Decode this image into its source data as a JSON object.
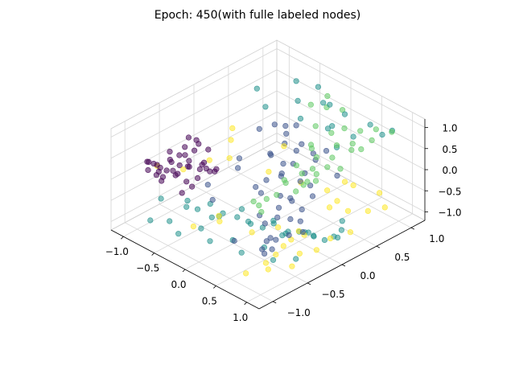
{
  "chart_data": {
    "type": "scatter",
    "projection": "3d",
    "title": "Epoch: 450(with fulle labeled nodes)",
    "xlabel": "",
    "ylabel": "",
    "zlabel": "",
    "xlim": [
      -1.2,
      1.2
    ],
    "ylim": [
      -1.2,
      1.2
    ],
    "zlim": [
      -1.2,
      1.2
    ],
    "x_ticks": [
      "−1.0",
      "−0.5",
      "0.0",
      "0.5",
      "1.0"
    ],
    "y_ticks": [
      "−1.0",
      "−0.5",
      "0.0",
      "0.5",
      "1.0"
    ],
    "z_ticks": [
      "−1.0",
      "−0.5",
      "0.0",
      "0.5",
      "1.0"
    ],
    "grid": true,
    "colormap": "viridis",
    "marker_alpha": 0.55,
    "cluster_colors": [
      "#440154",
      "#3b528b",
      "#21918c",
      "#5ec962",
      "#fde725"
    ],
    "clusters": [
      {
        "color": "#440154",
        "x": [
          -0.95,
          -0.9,
          -0.88,
          -0.85,
          -0.8,
          -0.78,
          -0.75,
          -0.7,
          -0.92,
          -0.86,
          -0.82,
          -0.76,
          -0.72,
          -0.68,
          -0.9,
          -0.84,
          -0.8,
          -0.74,
          -0.66,
          -0.62,
          -0.95,
          -0.88,
          -0.7,
          -0.6,
          -0.55,
          -0.93,
          -0.83,
          -0.77,
          -0.65,
          -0.58,
          -0.9,
          -0.8,
          -0.72,
          -0.64,
          -0.5,
          -0.87,
          -0.79,
          -0.69,
          -0.61,
          -0.56
        ],
        "y": [
          -0.9,
          -0.85,
          -0.95,
          -0.8,
          -0.9,
          -0.7,
          -0.85,
          -0.75,
          -0.6,
          -0.65,
          -0.55,
          -0.6,
          -0.5,
          -0.7,
          -0.4,
          -0.45,
          -0.35,
          -0.5,
          -0.55,
          -0.4,
          -0.3,
          -0.25,
          -0.3,
          -0.45,
          -0.35,
          -0.75,
          -0.8,
          -0.65,
          -0.6,
          -0.5,
          -0.2,
          -0.15,
          -0.25,
          -0.2,
          -0.3,
          -0.95,
          -0.9,
          -0.85,
          -0.7,
          -0.6
        ],
        "z": [
          0.35,
          0.3,
          0.25,
          0.2,
          0.15,
          0.3,
          0.1,
          0.2,
          0.35,
          0.25,
          0.3,
          0.15,
          0.2,
          0.1,
          0.3,
          0.2,
          0.25,
          0.05,
          0.15,
          0.1,
          0.4,
          0.35,
          0.0,
          0.05,
          -0.05,
          0.0,
          -0.1,
          -0.05,
          -0.15,
          -0.1,
          0.2,
          0.1,
          -0.2,
          -0.25,
          0.0,
          0.45,
          0.4,
          0.3,
          -0.3,
          -0.2
        ]
      },
      {
        "color": "#3b528b",
        "x": [
          -0.9,
          -0.6,
          -0.4,
          -0.2,
          0.0,
          0.2,
          0.4,
          0.6,
          0.8,
          -0.7,
          -0.3,
          0.1,
          0.5,
          0.7,
          -0.5,
          -0.1,
          0.3,
          0.9,
          -0.8,
          -0.2,
          0.2,
          0.6,
          -0.6,
          0.0,
          0.4,
          0.8,
          -0.4,
          0.1,
          0.5,
          0.95,
          -0.75,
          -0.35,
          0.15,
          0.55,
          0.85,
          -0.55,
          -0.05,
          0.35,
          0.75,
          -0.15,
          0.25,
          0.65,
          -0.45,
          0.05,
          0.45,
          0.9,
          -0.25,
          0.35
        ],
        "y": [
          0.9,
          0.8,
          0.6,
          0.4,
          0.2,
          0.0,
          -0.2,
          -0.4,
          -0.6,
          0.5,
          0.3,
          0.1,
          -0.1,
          -0.3,
          0.7,
          0.5,
          0.2,
          -0.5,
          0.3,
          0.0,
          -0.3,
          -0.5,
          0.1,
          -0.1,
          -0.4,
          -0.8,
          0.4,
          0.6,
          0.2,
          -0.9,
          -0.2,
          0.8,
          0.4,
          0.0,
          -0.7,
          0.9,
          0.7,
          0.3,
          -0.2,
          0.5,
          0.1,
          -0.6,
          -0.4,
          0.8,
          0.6,
          -0.3,
          0.2,
          -0.8
        ],
        "z": [
          -0.3,
          -0.2,
          -0.1,
          -0.25,
          -0.15,
          -0.35,
          -0.3,
          -0.2,
          -0.4,
          0.1,
          0.0,
          -0.05,
          -0.15,
          -0.25,
          0.15,
          0.05,
          -0.1,
          -0.3,
          -0.5,
          -0.45,
          -0.55,
          -0.6,
          -0.4,
          -0.35,
          -0.5,
          -0.45,
          -0.2,
          -0.1,
          -0.3,
          -0.35,
          -0.65,
          -0.25,
          -0.2,
          -0.4,
          -0.5,
          -0.05,
          -0.15,
          -0.25,
          -0.35,
          -0.3,
          -0.45,
          -0.55,
          -0.6,
          -0.1,
          -0.2,
          -0.4,
          -0.5,
          -0.6
        ]
      },
      {
        "color": "#21918c",
        "x": [
          -0.9,
          -0.7,
          -0.5,
          -0.3,
          -0.1,
          0.1,
          0.3,
          0.5,
          0.7,
          0.9,
          -0.8,
          -0.6,
          -0.4,
          -0.2,
          0.0,
          0.2,
          0.4,
          0.6,
          0.8,
          -0.95,
          -0.65,
          -0.35,
          -0.05,
          0.25,
          0.55,
          0.85,
          -0.75,
          -0.45,
          -0.15,
          0.15,
          0.45,
          0.75,
          -0.55,
          -0.25,
          0.05,
          0.35,
          0.65,
          0.95,
          -0.85,
          -0.3,
          0.0,
          0.3,
          0.6,
          0.9,
          -0.6,
          -0.2,
          0.2,
          0.5,
          0.7,
          0.8,
          0.85,
          0.9,
          0.6,
          0.4
        ],
        "y": [
          -0.9,
          -0.8,
          -0.85,
          -0.7,
          -0.75,
          -0.6,
          -0.65,
          -0.5,
          -0.55,
          -0.4,
          -0.45,
          -0.3,
          -0.35,
          -0.2,
          -0.25,
          -0.1,
          -0.15,
          0.0,
          -0.05,
          -0.7,
          -0.6,
          -0.5,
          -0.4,
          -0.3,
          -0.2,
          -0.1,
          -0.35,
          -0.25,
          -0.15,
          -0.05,
          0.05,
          0.15,
          0.9,
          0.95,
          0.85,
          0.8,
          0.9,
          0.95,
          0.6,
          0.7,
          0.8,
          0.6,
          0.7,
          0.85,
          0.5,
          0.65,
          0.75,
          0.55,
          0.45,
          0.35,
          0.25,
          0.15,
          0.05,
          -0.1
        ],
        "z": [
          -1.0,
          -0.95,
          -1.05,
          -0.9,
          -1.0,
          -0.95,
          -1.05,
          -0.9,
          -1.0,
          -0.95,
          -0.85,
          -0.9,
          -1.0,
          -0.8,
          -0.95,
          -0.85,
          -1.0,
          -0.9,
          -0.8,
          -0.7,
          -0.75,
          -0.85,
          -0.7,
          -0.8,
          -0.75,
          -0.7,
          -1.1,
          -1.05,
          -1.1,
          -1.0,
          -1.05,
          -1.1,
          1.0,
          1.05,
          0.95,
          1.0,
          0.9,
          0.95,
          0.85,
          0.9,
          1.0,
          0.8,
          0.75,
          0.9,
          0.7,
          0.6,
          0.65,
          0.55,
          -0.95,
          -1.0,
          -1.05,
          -0.9,
          -0.95,
          -1.0
        ]
      },
      {
        "color": "#5ec962",
        "x": [
          -0.2,
          0.0,
          0.2,
          0.4,
          0.6,
          0.8,
          1.0,
          0.1,
          0.3,
          0.5,
          0.7,
          0.9,
          -0.1,
          0.25,
          0.45,
          0.65,
          0.85,
          0.95,
          0.35,
          0.55,
          0.75,
          0.15,
          0.5,
          0.8,
          0.6,
          0.9,
          0.7,
          0.4,
          0.95,
          0.85,
          0.65,
          0.55,
          0.75,
          0.9,
          1.0,
          0.45
        ],
        "y": [
          0.8,
          0.85,
          0.9,
          0.75,
          0.8,
          0.85,
          0.9,
          0.6,
          0.65,
          0.55,
          0.6,
          0.7,
          0.95,
          0.4,
          0.3,
          0.35,
          0.45,
          0.5,
          0.1,
          0.0,
          -0.1,
          0.5,
          0.2,
          -0.2,
          -0.3,
          -0.4,
          -0.5,
          -0.1,
          0.2,
          0.1,
          -0.6,
          -0.7,
          -0.8,
          -0.9,
          -0.2,
          0.3
        ],
        "z": [
          0.8,
          0.85,
          0.9,
          0.75,
          0.8,
          0.95,
          1.0,
          0.7,
          0.65,
          0.6,
          0.75,
          0.9,
          0.95,
          0.55,
          0.5,
          0.6,
          0.85,
          0.9,
          0.4,
          0.45,
          0.5,
          0.3,
          0.35,
          0.55,
          0.6,
          0.65,
          0.5,
          0.2,
          0.7,
          0.75,
          0.45,
          0.4,
          0.55,
          0.6,
          0.8,
          0.1
        ]
      },
      {
        "color": "#fde725",
        "x": [
          -0.9,
          -0.7,
          -0.5,
          -0.2,
          0.0,
          0.3,
          0.5,
          0.7,
          0.9,
          1.0,
          -0.8,
          -0.6,
          -0.4,
          -0.1,
          0.2,
          0.4,
          0.6,
          0.8,
          0.95,
          0.85,
          0.75,
          0.65,
          0.55,
          0.45,
          0.35,
          0.9,
          0.8,
          0.7,
          0.6,
          0.5,
          -0.3,
          0.1,
          0.95,
          1.0,
          0.85,
          0.9
        ],
        "y": [
          -0.8,
          -0.6,
          -0.4,
          -0.9,
          -0.7,
          -0.5,
          -0.3,
          -0.1,
          0.1,
          0.3,
          0.2,
          0.0,
          -0.2,
          0.1,
          0.3,
          0.5,
          0.7,
          0.9,
          -0.5,
          -0.3,
          -0.7,
          -0.9,
          0.4,
          0.6,
          0.8,
          -0.8,
          -0.6,
          -0.4,
          -0.2,
          0.0,
          0.5,
          -0.8,
          0.6,
          0.8,
          0.4,
          -0.1
        ],
        "z": [
          0.2,
          0.1,
          0.3,
          -0.6,
          -0.5,
          -0.7,
          -0.6,
          -0.8,
          -0.9,
          -0.85,
          0.3,
          0.35,
          0.25,
          -0.1,
          -0.3,
          -0.5,
          -0.4,
          -0.6,
          -1.0,
          -0.95,
          -0.9,
          -1.05,
          -0.7,
          -0.8,
          -0.6,
          -0.85,
          -0.75,
          -0.8,
          -0.9,
          -0.95,
          0.0,
          -0.2,
          -0.65,
          -0.7,
          -0.55,
          -1.0
        ]
      }
    ]
  }
}
